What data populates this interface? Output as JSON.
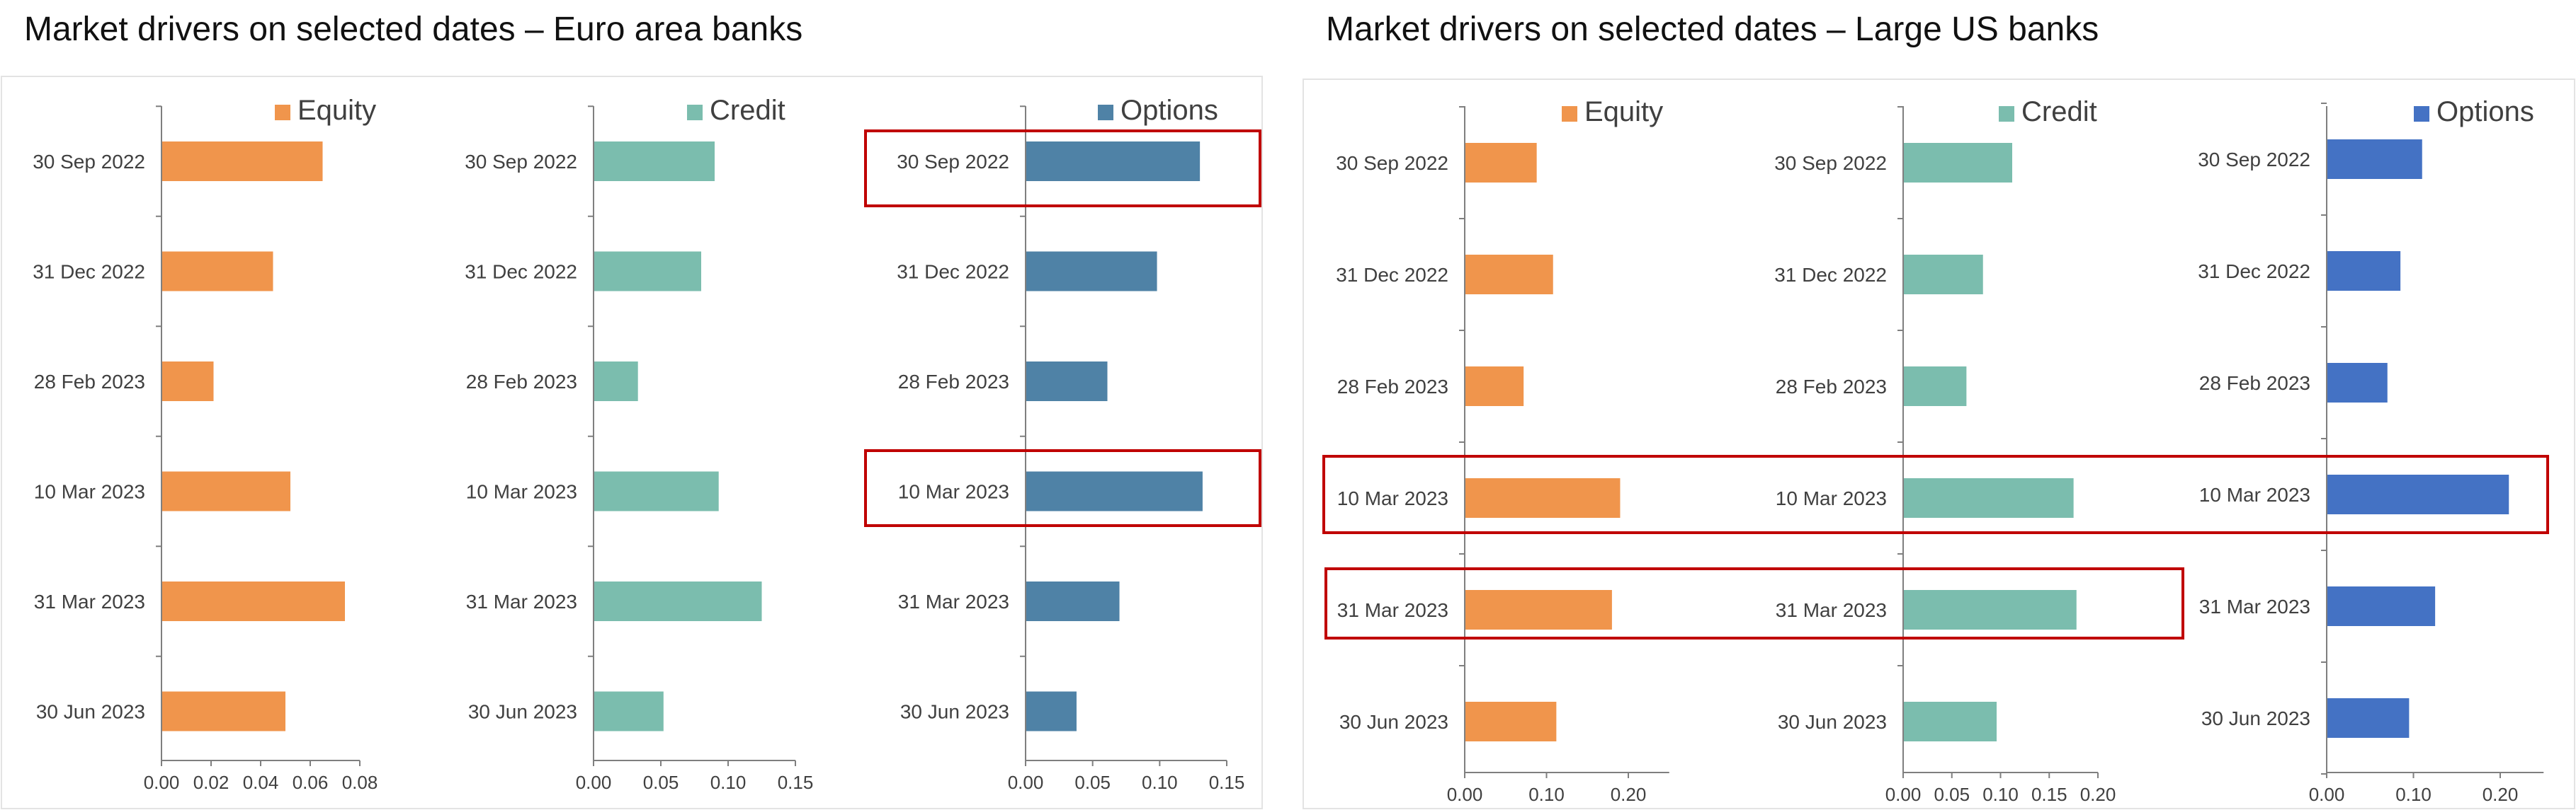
{
  "panels": {
    "euro": {
      "title": "Market drivers on selected dates – Euro area banks"
    },
    "us": {
      "title": "Market drivers on selected dates – Large US banks"
    }
  },
  "colors": {
    "equity": "#F0954C",
    "credit": "#7BBDAE",
    "options_euro": "#4F82A6",
    "options_us": "#4472C4",
    "highlight": "#C00000",
    "axis": "#7F7F7F",
    "text": "#404040"
  },
  "chart_data": [
    {
      "type": "bar",
      "orientation": "horizontal",
      "panel": "euro",
      "legend": "Equity",
      "legend_placement": "top-right",
      "categories": [
        "30 Sep 2022",
        "31 Dec 2022",
        "28 Feb 2023",
        "10 Mar 2023",
        "31 Mar 2023",
        "30 Jun 2023"
      ],
      "values": [
        0.065,
        0.045,
        0.021,
        0.052,
        0.074,
        0.05
      ],
      "xlim": [
        0,
        0.08
      ],
      "xticks": [
        "0.00",
        "0.02",
        "0.04",
        "0.06",
        "0.08"
      ],
      "grid": false
    },
    {
      "type": "bar",
      "orientation": "horizontal",
      "panel": "euro",
      "legend": "Credit",
      "legend_placement": "top-right",
      "categories": [
        "30 Sep 2022",
        "31 Dec 2022",
        "28 Feb 2023",
        "10 Mar 2023",
        "31 Mar 2023",
        "30 Jun 2023"
      ],
      "values": [
        0.09,
        0.08,
        0.033,
        0.093,
        0.125,
        0.052
      ],
      "xlim": [
        0,
        0.15
      ],
      "xticks": [
        "0.00",
        "0.05",
        "0.10",
        "0.15"
      ],
      "grid": false
    },
    {
      "type": "bar",
      "orientation": "horizontal",
      "panel": "euro",
      "legend": "Options",
      "legend_placement": "top-right",
      "categories": [
        "30 Sep 2022",
        "31 Dec 2022",
        "28 Feb 2023",
        "10 Mar 2023",
        "31 Mar 2023",
        "30 Jun 2023"
      ],
      "values": [
        0.13,
        0.098,
        0.061,
        0.132,
        0.07,
        0.038
      ],
      "xlim": [
        0,
        0.15
      ],
      "xticks": [
        "0.00",
        "0.05",
        "0.10",
        "0.15"
      ],
      "grid": false,
      "highlighted": [
        "30 Sep 2022",
        "10 Mar 2023"
      ]
    },
    {
      "type": "bar",
      "orientation": "horizontal",
      "panel": "us",
      "legend": "Equity",
      "legend_placement": "top-right",
      "categories": [
        "30 Sep 2022",
        "31 Dec 2022",
        "28 Feb 2023",
        "10 Mar 2023",
        "31 Mar 2023",
        "30 Jun 2023"
      ],
      "values": [
        0.088,
        0.108,
        0.072,
        0.19,
        0.18,
        0.112
      ],
      "xlim": [
        0,
        0.25
      ],
      "xticks": [
        "0.00",
        "0.10",
        "0.20"
      ],
      "grid": false
    },
    {
      "type": "bar",
      "orientation": "horizontal",
      "panel": "us",
      "legend": "Credit",
      "legend_placement": "top-right",
      "categories": [
        "30 Sep 2022",
        "31 Dec 2022",
        "28 Feb 2023",
        "10 Mar 2023",
        "31 Mar 2023",
        "30 Jun 2023"
      ],
      "values": [
        0.112,
        0.082,
        0.065,
        0.175,
        0.178,
        0.096
      ],
      "xlim": [
        0,
        0.2
      ],
      "xticks": [
        "0.00",
        "0.05",
        "0.10",
        "0.15",
        "0.20"
      ],
      "grid": false
    },
    {
      "type": "bar",
      "orientation": "horizontal",
      "panel": "us",
      "legend": "Options",
      "legend_placement": "top-right",
      "categories": [
        "30 Sep 2022",
        "31 Dec 2022",
        "28 Feb 2023",
        "10 Mar 2023",
        "31 Mar 2023",
        "30 Jun 2023"
      ],
      "values": [
        0.11,
        0.085,
        0.07,
        0.21,
        0.125,
        0.095
      ],
      "xlim": [
        0,
        0.25
      ],
      "xticks": [
        "0.00",
        "0.10",
        "0.20"
      ],
      "grid": false
    }
  ],
  "highlights": [
    {
      "panel": "euro",
      "chart": "Options",
      "dates": [
        "30 Sep 2022"
      ]
    },
    {
      "panel": "euro",
      "chart": "Options",
      "dates": [
        "10 Mar 2023"
      ]
    },
    {
      "panel": "us",
      "charts": [
        "Equity",
        "Credit",
        "Options"
      ],
      "dates": [
        "10 Mar 2023"
      ]
    },
    {
      "panel": "us",
      "charts": [
        "Equity",
        "Credit"
      ],
      "dates": [
        "31 Mar 2023"
      ]
    }
  ]
}
